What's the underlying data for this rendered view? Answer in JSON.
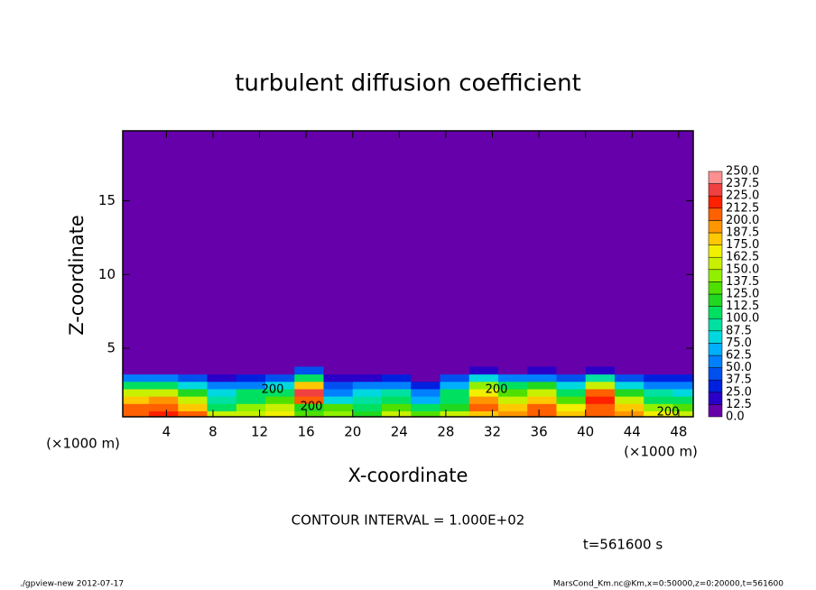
{
  "chart_data": {
    "type": "contour",
    "title": "turbulent diffusion coefficient",
    "x_label": "X-coordinate",
    "y_label": "Z-coordinate",
    "x_unit_left": "(×1000 m)",
    "x_unit_right": "(×1000 m)",
    "contour_note": "CONTOUR INTERVAL = 1.000E+02",
    "time_note": "t=561600 s",
    "footer_left": "./gpview-new  2012-07-17",
    "footer_right": "MarsCond_Km.nc@Km,x=0:50000,z=0:20000,t=561600",
    "xlim": [
      0.25,
      49.25
    ],
    "ylim": [
      0.35,
      19.75
    ],
    "xticks": [
      4,
      8,
      12,
      16,
      20,
      24,
      28,
      32,
      36,
      40,
      44,
      48
    ],
    "yticks": [
      5,
      10,
      15
    ],
    "x": [
      1.25,
      3.75,
      6.25,
      8.75,
      11.25,
      13.75,
      16.25,
      18.75,
      21.25,
      23.75,
      26.25,
      28.75,
      31.25,
      33.75,
      36.25,
      38.75,
      41.25,
      43.75,
      46.25,
      48.75
    ],
    "z": [
      0.5,
      1.0,
      1.5,
      2.0,
      2.5,
      3.0,
      3.5
    ],
    "values": [
      [
        210,
        220,
        200,
        150,
        160,
        170,
        130,
        140,
        120,
        160,
        130,
        150,
        180,
        190,
        210,
        180,
        200,
        190,
        170,
        160
      ],
      [
        200,
        210,
        180,
        110,
        140,
        150,
        120,
        130,
        110,
        130,
        100,
        120,
        200,
        180,
        200,
        170,
        210,
        180,
        140,
        130
      ],
      [
        180,
        190,
        150,
        90,
        110,
        130,
        210,
        80,
        90,
        110,
        70,
        110,
        190,
        150,
        180,
        130,
        220,
        150,
        110,
        100
      ],
      [
        160,
        150,
        120,
        80,
        100,
        110,
        230,
        60,
        80,
        90,
        50,
        100,
        170,
        130,
        150,
        110,
        200,
        120,
        90,
        80
      ],
      [
        110,
        100,
        80,
        50,
        60,
        80,
        180,
        40,
        50,
        60,
        30,
        70,
        140,
        110,
        120,
        80,
        150,
        80,
        60,
        50
      ],
      [
        60,
        50,
        40,
        20,
        30,
        40,
        110,
        20,
        20,
        30,
        10,
        40,
        80,
        60,
        60,
        40,
        90,
        40,
        30,
        30
      ],
      [
        10,
        10,
        10,
        0,
        0,
        5,
        40,
        5,
        0,
        5,
        0,
        10,
        20,
        10,
        15,
        10,
        20,
        5,
        5,
        5
      ]
    ],
    "levels": [
      {
        "value": 0,
        "label": "0.0"
      },
      {
        "value": 12.5,
        "label": "12.5"
      },
      {
        "value": 25,
        "label": "25.0"
      },
      {
        "value": 37.5,
        "label": "37.5"
      },
      {
        "value": 50,
        "label": "50.0"
      },
      {
        "value": 62.5,
        "label": "62.5"
      },
      {
        "value": 75,
        "label": "75.0"
      },
      {
        "value": 87.5,
        "label": "87.5"
      },
      {
        "value": 100,
        "label": "100.0"
      },
      {
        "value": 112.5,
        "label": "112.5"
      },
      {
        "value": 125,
        "label": "125.0"
      },
      {
        "value": 137.5,
        "label": "137.5"
      },
      {
        "value": 150,
        "label": "150.0"
      },
      {
        "value": 162.5,
        "label": "162.5"
      },
      {
        "value": 175,
        "label": "175.0"
      },
      {
        "value": 187.5,
        "label": "187.5"
      },
      {
        "value": 200,
        "label": "200.0"
      },
      {
        "value": 212.5,
        "label": "212.5"
      },
      {
        "value": 225,
        "label": "225.0"
      },
      {
        "value": 237.5,
        "label": "237.5"
      },
      {
        "value": 250,
        "label": "250.0"
      }
    ],
    "colors": [
      "#6600aa",
      "#2a00c8",
      "#0020e0",
      "#0050f0",
      "#0080ff",
      "#00b0ff",
      "#00d8e0",
      "#00e0a0",
      "#00e060",
      "#20d820",
      "#50e000",
      "#90f000",
      "#c8f000",
      "#f0f000",
      "#ffc800",
      "#ff9600",
      "#ff6000",
      "#ff2000",
      "#f04040",
      "#ff9090"
    ],
    "contour_labels": [
      200,
      200,
      200,
      200
    ]
  }
}
